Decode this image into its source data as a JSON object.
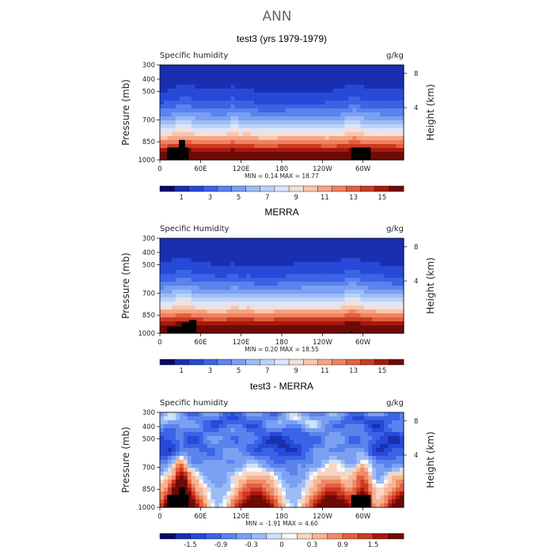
{
  "title": "ANN",
  "colors": {
    "abs_palette": [
      "#08086b",
      "#1a2fb0",
      "#2649d8",
      "#3a63e6",
      "#5a83ee",
      "#7aa0f2",
      "#9cbcf6",
      "#bcd3f8",
      "#dbe6f8",
      "#f4e0d8",
      "#f8c6ae",
      "#f6a484",
      "#ef8260",
      "#e45f3e",
      "#cc3a22",
      "#a8180f",
      "#6e0a06"
    ],
    "diff_palette": [
      "#08086b",
      "#1a2fb0",
      "#2649d8",
      "#3a63e6",
      "#5a83ee",
      "#7aa0f2",
      "#9cbcf6",
      "#cfe0f8",
      "#f8f8f8",
      "#f8d6c0",
      "#f6b494",
      "#ef8a66",
      "#e45f3e",
      "#cc3a22",
      "#a8180f",
      "#6e0a06"
    ],
    "land": "#000000"
  },
  "chart_data": [
    {
      "type": "heatmap",
      "title": "test3 (yrs 1979-1979)",
      "field_label": "Specific humidity",
      "units": "g/kg",
      "ylabel": "Pressure (mb)",
      "y2label": "Height (km)",
      "yticks": [
        "300",
        "400",
        "500",
        "700",
        "850",
        "1000"
      ],
      "y2ticks": [
        "8",
        "4"
      ],
      "xticks": [
        "0",
        "60E",
        "120E",
        "180",
        "120W",
        "60W"
      ],
      "min_max_text": "MIN =   0.14   MAX =  18.77",
      "colorbar_labels": [
        "1",
        "3",
        "5",
        "7",
        "9",
        "11",
        "13",
        "15"
      ]
    },
    {
      "type": "heatmap",
      "title": "MERRA",
      "field_label": "Specific Humidity",
      "units": "g/kg",
      "ylabel": "Pressure (mb)",
      "y2label": "Height (km)",
      "yticks": [
        "300",
        "400",
        "500",
        "700",
        "850",
        "1000"
      ],
      "y2ticks": [
        "8",
        "4"
      ],
      "xticks": [
        "0",
        "60E",
        "120E",
        "180",
        "120W",
        "60W"
      ],
      "min_max_text": "MIN =   0.20   MAX =  18.55",
      "colorbar_labels": [
        "1",
        "3",
        "5",
        "7",
        "9",
        "11",
        "13",
        "15"
      ]
    },
    {
      "type": "heatmap",
      "title": "test3 - MERRA",
      "field_label": "Specific humidity",
      "units": "g/kg",
      "ylabel": "Pressure (mb)",
      "y2label": "Height (km)",
      "yticks": [
        "300",
        "400",
        "500",
        "700",
        "850",
        "1000"
      ],
      "y2ticks": [
        "8",
        "4"
      ],
      "xticks": [
        "0",
        "60E",
        "120E",
        "180",
        "120W",
        "60W"
      ],
      "min_max_text": "MIN =  -1.91   MAX =   4.60",
      "colorbar_labels": [
        "-1.5",
        "-0.9",
        "-0.3",
        "0",
        "0.3",
        "0.9",
        "1.5"
      ]
    }
  ]
}
